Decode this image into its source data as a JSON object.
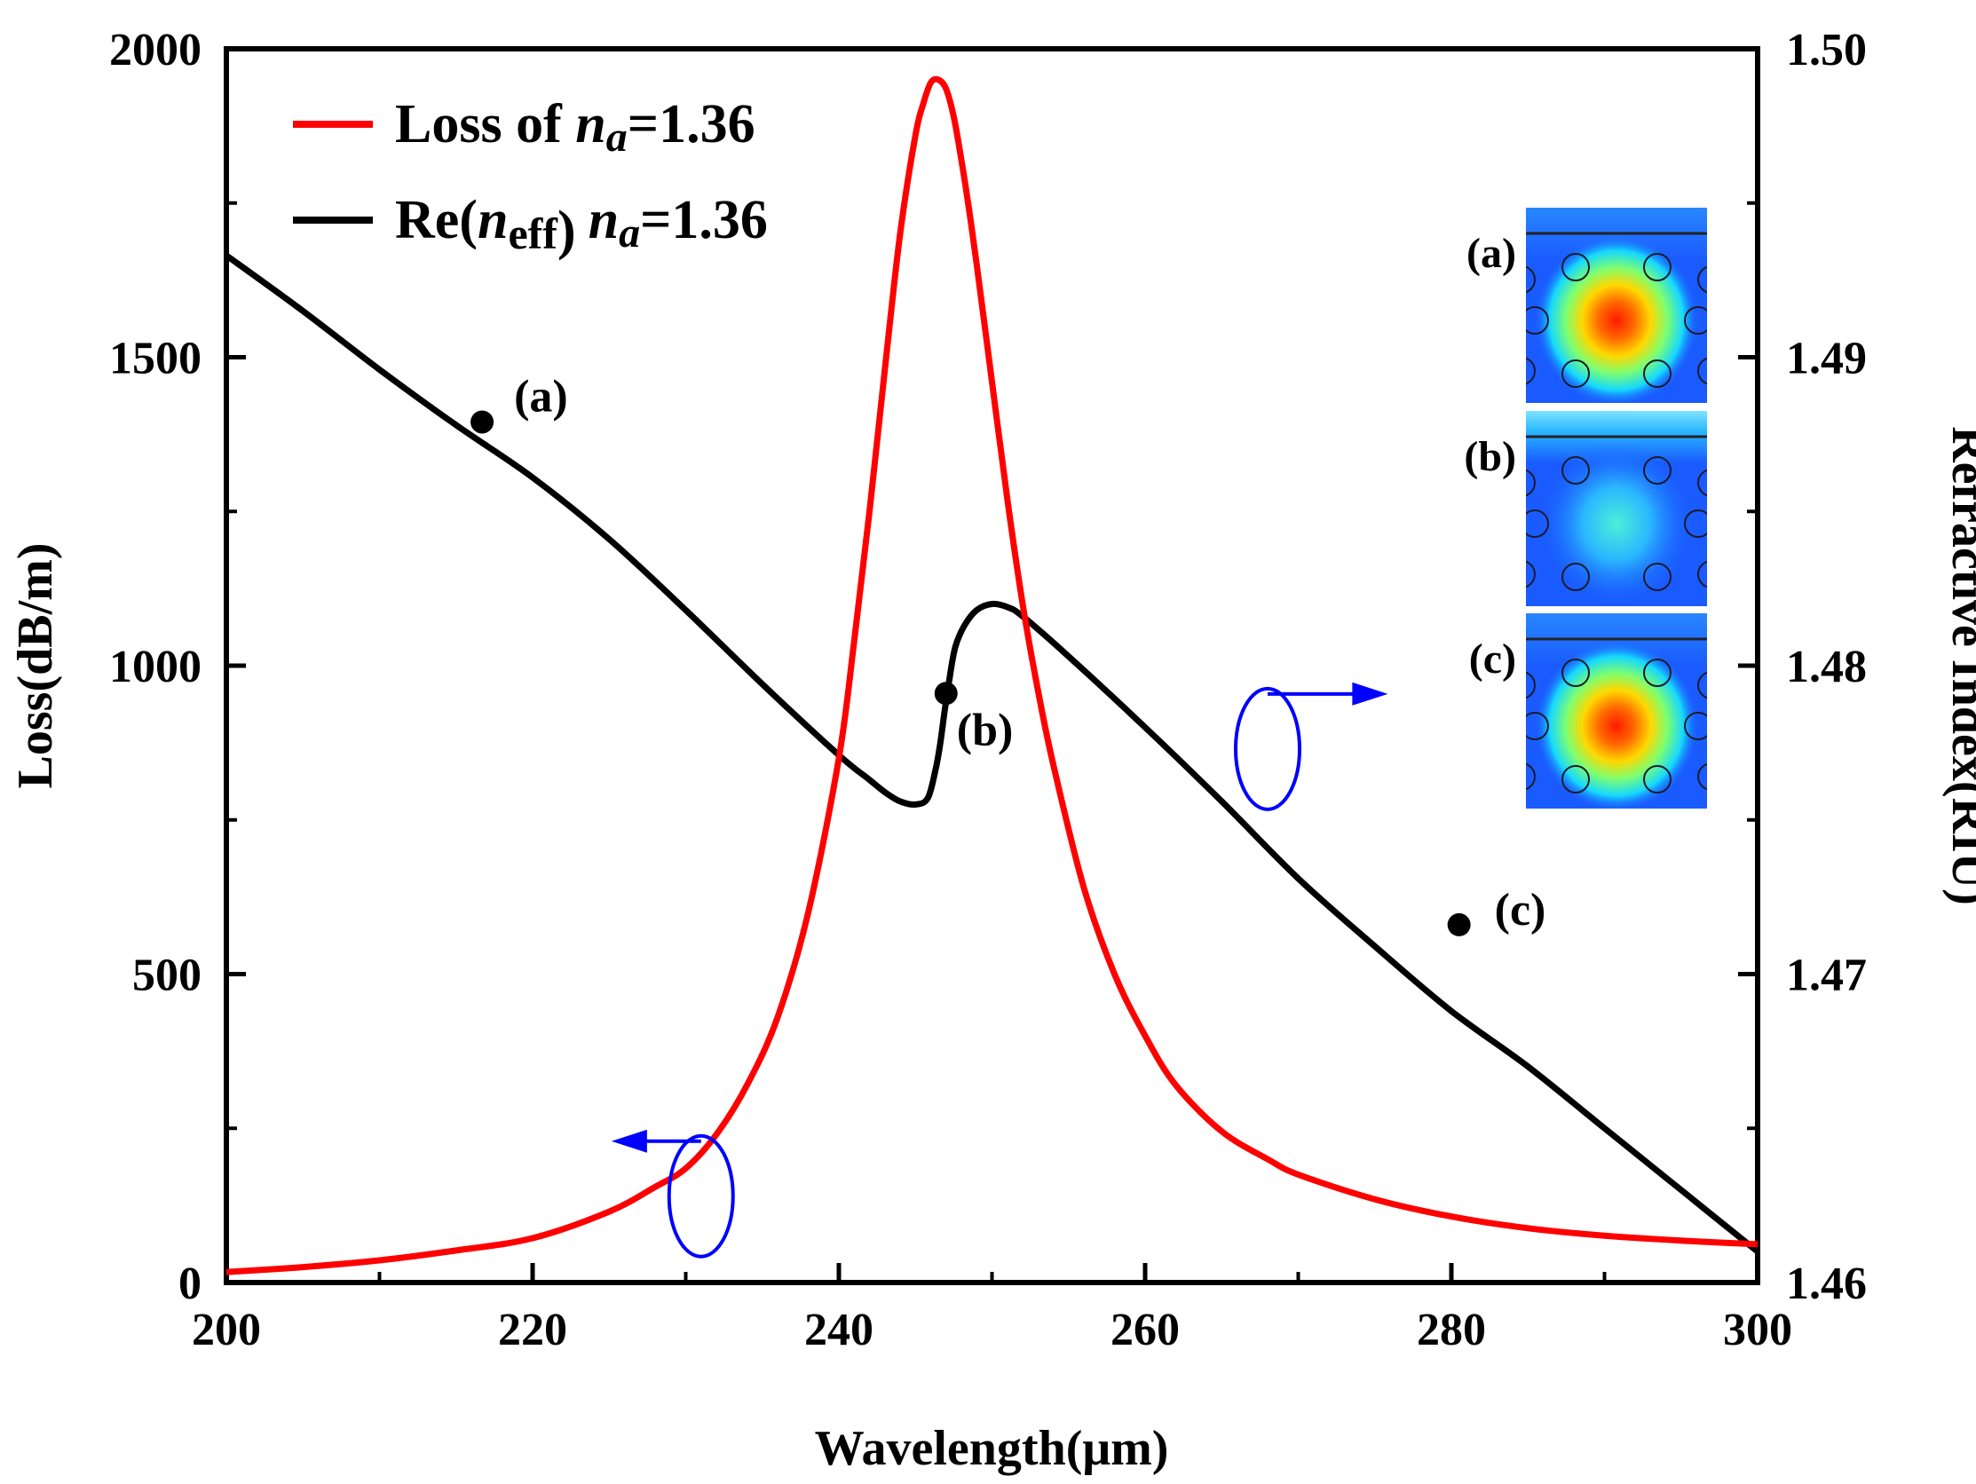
{
  "chart_data": {
    "type": "line",
    "title": "",
    "xlabel": "Wavelength(μm)",
    "ylabel_left": "Loss(dB/m)",
    "ylabel_right": "Refractive Index(RIU)",
    "xlim": [
      200,
      300
    ],
    "ylim_left": [
      0,
      2000
    ],
    "ylim_right": [
      1.46,
      1.5
    ],
    "x_ticks": [
      "200",
      "220",
      "240",
      "260",
      "280",
      "300"
    ],
    "y_left_ticks": [
      "0",
      "500",
      "1000",
      "1500",
      "2000"
    ],
    "y_right_ticks": [
      "1.46",
      "1.47",
      "1.48",
      "1.49",
      "1.50"
    ],
    "grid": false,
    "legend_position": "top-left",
    "legend": {
      "loss": {
        "prefix": "Loss of ",
        "na": "n",
        "na_sub": "a",
        "suffix": "=1.36"
      },
      "neff": {
        "re": "Re(",
        "n": "n",
        "n_sub": "eff",
        "close": ")",
        "na": "n",
        "na_sub": "a",
        "suffix": "=1.36"
      }
    },
    "series": [
      {
        "name": "Loss of na=1.36",
        "axis": "left",
        "color": "#ff0000",
        "x": [
          200,
          205,
          210,
          215,
          220,
          225,
          228,
          230,
          232,
          234,
          236,
          238,
          240,
          241,
          242,
          243,
          244,
          245,
          245.5,
          246,
          246.5,
          247,
          247.5,
          248,
          248.5,
          249,
          250,
          251,
          252,
          253,
          254,
          256,
          258,
          260,
          262,
          265,
          268,
          270,
          275,
          280,
          285,
          290,
          295,
          300
        ],
        "values": [
          17,
          25,
          36,
          52,
          72,
          115,
          155,
          185,
          240,
          320,
          430,
          600,
          850,
          1040,
          1250,
          1480,
          1700,
          1860,
          1910,
          1945,
          1950,
          1935,
          1890,
          1820,
          1740,
          1650,
          1460,
          1270,
          1100,
          960,
          840,
          640,
          500,
          400,
          320,
          245,
          200,
          175,
          135,
          107,
          88,
          76,
          68,
          62
        ]
      },
      {
        "name": "Re(neff) na=1.36",
        "axis": "right",
        "color": "#000000",
        "x": [
          200,
          205,
          210,
          215,
          220,
          225,
          230,
          235,
          240,
          242,
          243,
          244,
          245,
          245.8,
          246.3,
          246.6,
          246.9,
          247.2,
          247.6,
          248.2,
          249,
          250,
          251,
          252,
          255,
          260,
          265,
          270,
          275,
          280,
          285,
          290,
          295,
          300
        ],
        "values": [
          1.4933,
          1.4915,
          1.4896,
          1.4878,
          1.4861,
          1.4841,
          1.4818,
          1.4794,
          1.4771,
          1.4763,
          1.4759,
          1.4756,
          1.4755,
          1.4757,
          1.4766,
          1.4774,
          1.4785,
          1.4795,
          1.4806,
          1.4813,
          1.4818,
          1.482,
          1.4819,
          1.4816,
          1.4803,
          1.478,
          1.4756,
          1.4731,
          1.4709,
          1.4688,
          1.467,
          1.465,
          1.463,
          1.461
        ]
      }
    ],
    "markers": [
      {
        "label": "(a)",
        "x": 216.7,
        "y": 1.4879
      },
      {
        "label": "(b)",
        "x": 247.0,
        "y": 1.4791
      },
      {
        "label": "(c)",
        "x": 280.5,
        "y": 1.4716
      }
    ],
    "axis_indicators": [
      {
        "target": "left",
        "cx": 231,
        "cy": 140,
        "arrow_to_x": 225.5
      },
      {
        "target": "right",
        "cx": 268,
        "cy": 1.4773,
        "arrow_to_x": 275.5
      }
    ],
    "inset": {
      "labels": [
        "(a)",
        "(b)",
        "(c)"
      ],
      "core_strength": [
        1.0,
        0.25,
        1.0
      ]
    }
  }
}
